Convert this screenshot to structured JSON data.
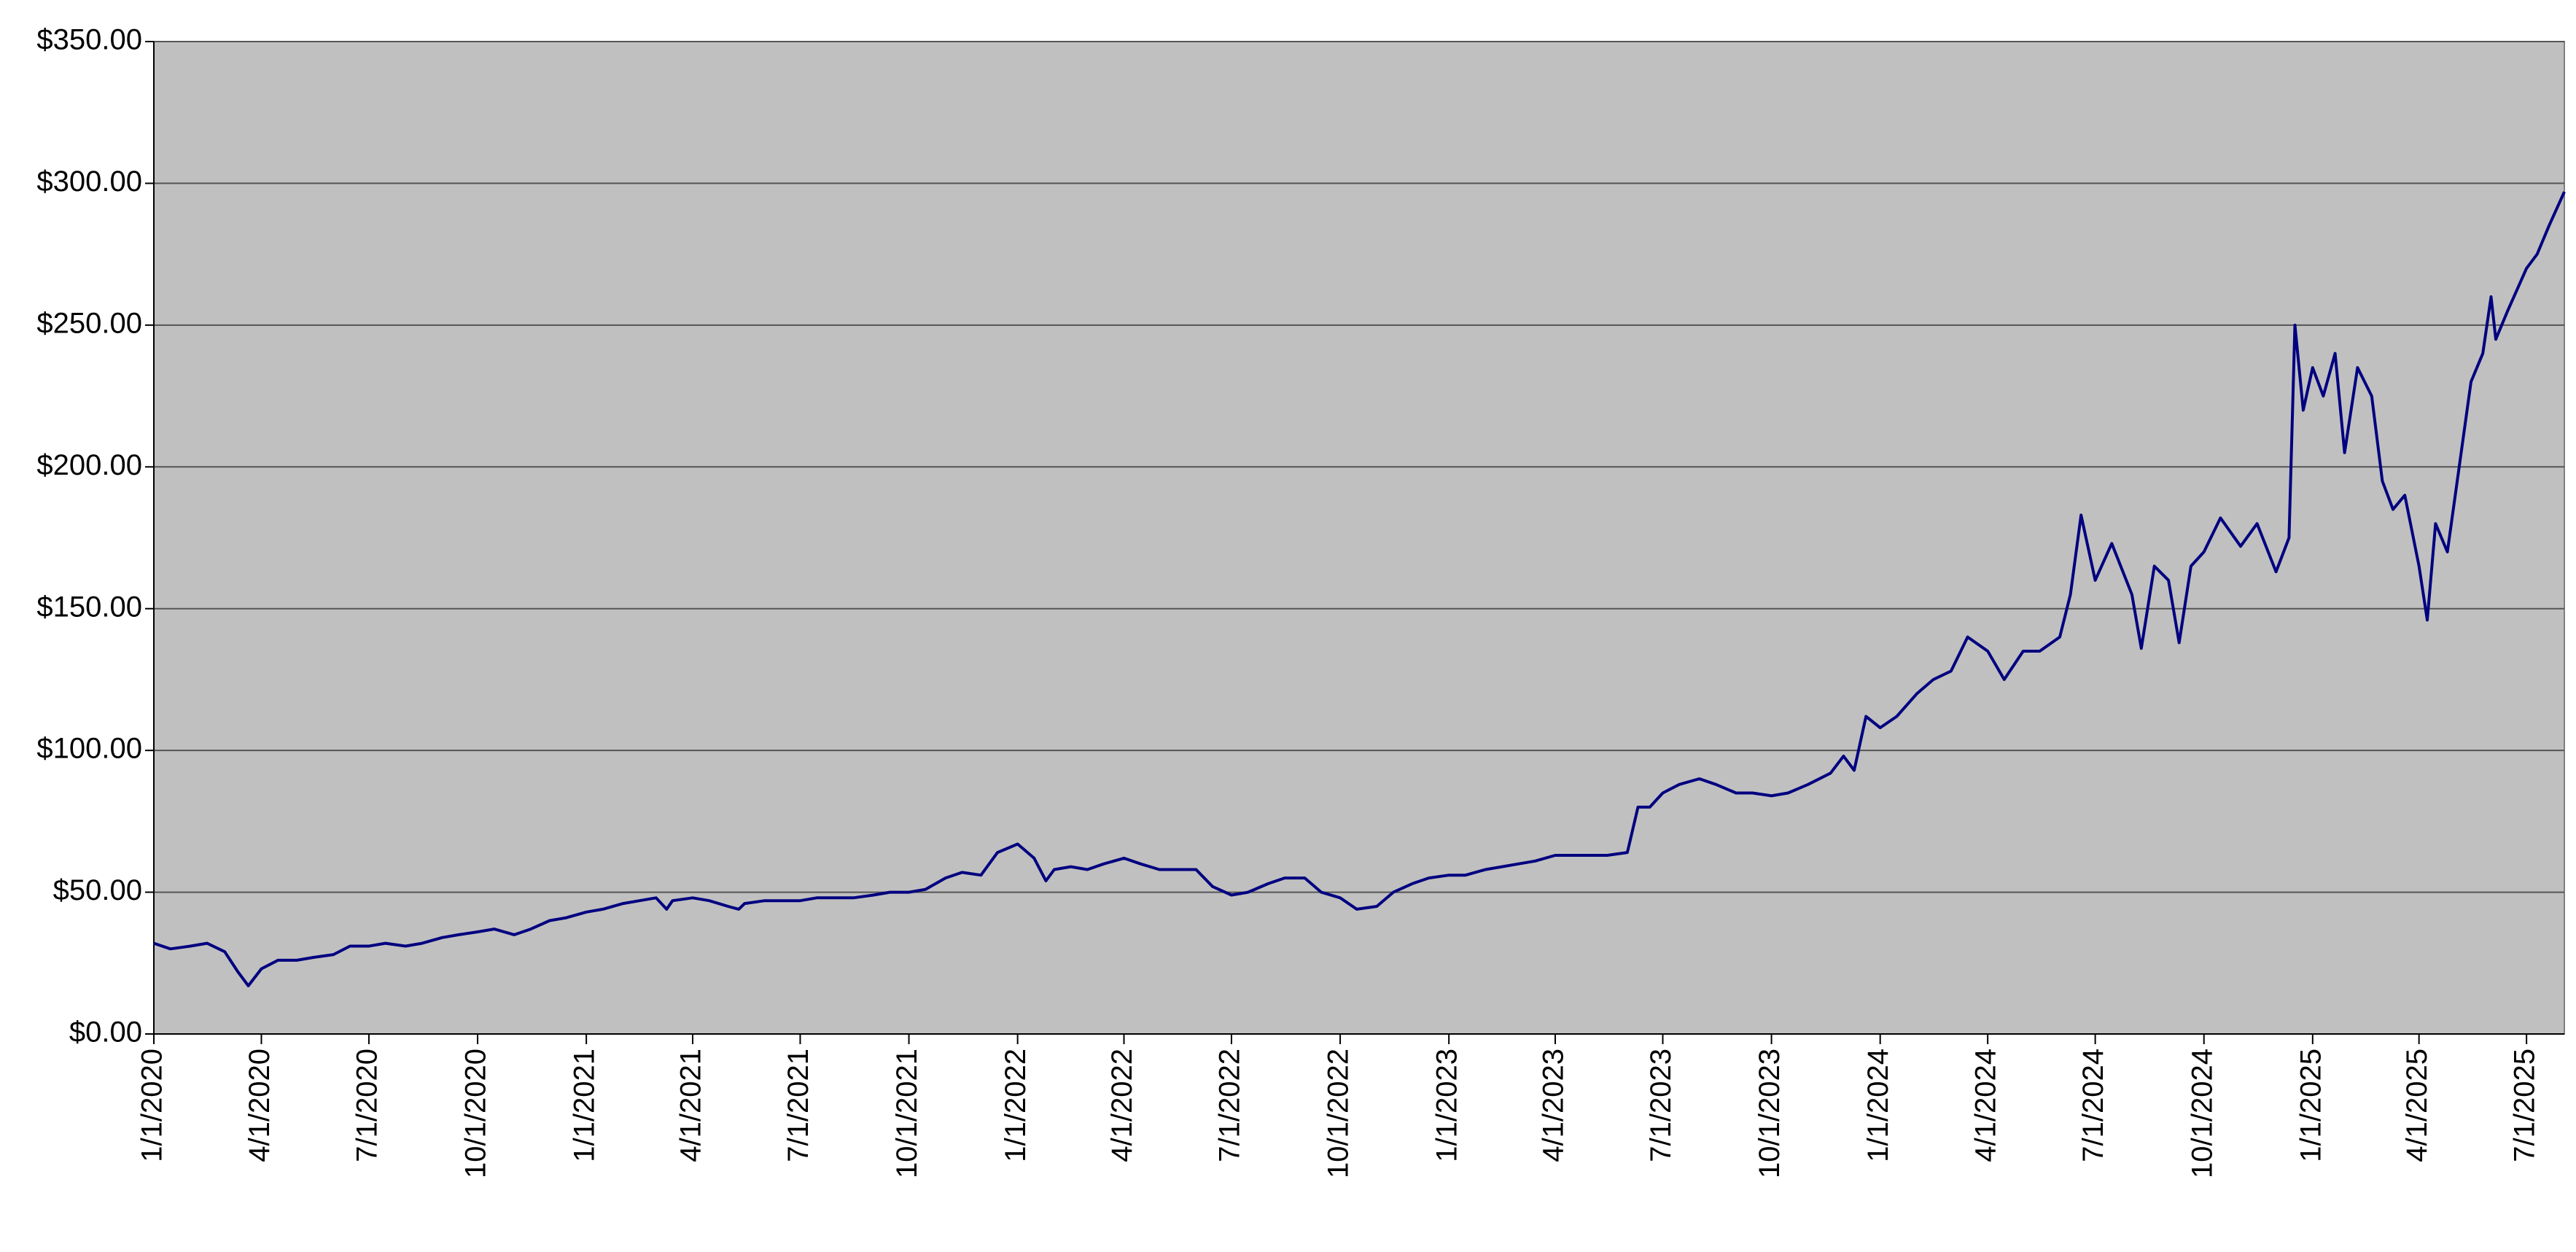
{
  "chart_data": {
    "type": "line",
    "color": "#000080",
    "grid": true,
    "xlim": [
      "1/1/2020",
      "8/2/2025"
    ],
    "ylim": [
      0,
      350
    ],
    "yticks": [
      {
        "value": 0,
        "label": "$0.00"
      },
      {
        "value": 50,
        "label": "$50.00"
      },
      {
        "value": 100,
        "label": "$100.00"
      },
      {
        "value": 150,
        "label": "$150.00"
      },
      {
        "value": 200,
        "label": "$200.00"
      },
      {
        "value": 250,
        "label": "$250.00"
      },
      {
        "value": 300,
        "label": "$300.00"
      },
      {
        "value": 350,
        "label": "$350.00"
      }
    ],
    "xticks": [
      "1/1/2020",
      "4/1/2020",
      "7/1/2020",
      "10/1/2020",
      "1/1/2021",
      "4/1/2021",
      "7/1/2021",
      "10/1/2021",
      "1/1/2022",
      "4/1/2022",
      "7/1/2022",
      "10/1/2022",
      "1/1/2023",
      "4/1/2023",
      "7/1/2023",
      "10/1/2023",
      "1/1/2024",
      "4/1/2024",
      "7/1/2024",
      "10/1/2024",
      "1/1/2025",
      "4/1/2025",
      "7/1/2025"
    ],
    "x": [
      "1/1/2020",
      "1/15/2020",
      "2/1/2020",
      "2/15/2020",
      "3/1/2020",
      "3/12/2020",
      "3/21/2020",
      "4/1/2020",
      "4/15/2020",
      "5/1/2020",
      "5/15/2020",
      "6/1/2020",
      "6/15/2020",
      "7/1/2020",
      "7/15/2020",
      "8/1/2020",
      "8/15/2020",
      "9/1/2020",
      "9/15/2020",
      "10/1/2020",
      "10/15/2020",
      "11/1/2020",
      "11/15/2020",
      "12/1/2020",
      "12/15/2020",
      "1/1/2021",
      "1/15/2021",
      "2/1/2021",
      "2/15/2021",
      "3/1/2021",
      "3/10/2021",
      "3/15/2021",
      "4/1/2021",
      "4/15/2021",
      "5/1/2021",
      "5/10/2021",
      "5/15/2021",
      "6/1/2021",
      "6/15/2021",
      "7/1/2021",
      "7/15/2021",
      "8/1/2021",
      "8/15/2021",
      "9/1/2021",
      "9/15/2021",
      "10/1/2021",
      "10/15/2021",
      "11/1/2021",
      "11/15/2021",
      "12/1/2021",
      "12/15/2021",
      "1/1/2022",
      "1/15/2022",
      "1/25/2022",
      "2/1/2022",
      "2/15/2022",
      "3/1/2022",
      "3/15/2022",
      "4/1/2022",
      "4/15/2022",
      "5/1/2022",
      "5/15/2022",
      "6/1/2022",
      "6/15/2022",
      "7/1/2022",
      "7/15/2022",
      "8/1/2022",
      "8/15/2022",
      "9/1/2022",
      "9/15/2022",
      "10/1/2022",
      "10/15/2022",
      "11/1/2022",
      "11/15/2022",
      "12/1/2022",
      "12/15/2022",
      "1/1/2023",
      "1/15/2023",
      "2/1/2023",
      "2/15/2023",
      "3/1/2023",
      "3/15/2023",
      "4/1/2023",
      "4/15/2023",
      "5/1/2023",
      "5/15/2023",
      "6/1/2023",
      "6/10/2023",
      "6/20/2023",
      "7/1/2023",
      "7/15/2023",
      "8/1/2023",
      "8/15/2023",
      "9/1/2023",
      "9/15/2023",
      "10/1/2023",
      "10/15/2023",
      "11/1/2023",
      "11/20/2023",
      "12/1/2023",
      "12/10/2023",
      "12/20/2023",
      "1/1/2024",
      "1/15/2024",
      "2/1/2024",
      "2/15/2024",
      "3/1/2024",
      "3/15/2024",
      "4/1/2024",
      "4/15/2024",
      "5/1/2024",
      "5/15/2024",
      "6/1/2024",
      "6/10/2024",
      "6/19/2024",
      "7/1/2024",
      "7/15/2024",
      "8/1/2024",
      "8/9/2024",
      "8/20/2024",
      "9/1/2024",
      "9/10/2024",
      "9/20/2024",
      "10/1/2024",
      "10/15/2024",
      "11/1/2024",
      "11/15/2024",
      "12/1/2024",
      "12/12/2024",
      "12/17/2024",
      "12/24/2024",
      "1/1/2025",
      "1/10/2025",
      "1/20/2025",
      "1/28/2025",
      "2/8/2025",
      "2/20/2025",
      "3/1/2025",
      "3/10/2025",
      "3/20/2025",
      "4/1/2025",
      "4/8/2025",
      "4/15/2025",
      "4/25/2025",
      "5/5/2025",
      "5/15/2025",
      "5/25/2025",
      "6/1/2025",
      "6/5/2025",
      "6/15/2025",
      "7/1/2025",
      "7/10/2025",
      "7/20/2025",
      "8/2/2025"
    ],
    "values": [
      32,
      30,
      31,
      32,
      29,
      22,
      17,
      23,
      26,
      26,
      27,
      28,
      31,
      31,
      32,
      31,
      32,
      34,
      35,
      36,
      37,
      35,
      37,
      40,
      41,
      43,
      44,
      46,
      47,
      48,
      44,
      47,
      48,
      47,
      45,
      44,
      46,
      47,
      47,
      47,
      48,
      48,
      48,
      49,
      50,
      50,
      51,
      55,
      57,
      56,
      64,
      67,
      62,
      54,
      58,
      59,
      58,
      60,
      62,
      60,
      58,
      58,
      58,
      52,
      49,
      50,
      53,
      55,
      55,
      50,
      48,
      44,
      45,
      50,
      53,
      55,
      56,
      56,
      58,
      59,
      60,
      61,
      63,
      63,
      63,
      63,
      64,
      80,
      80,
      85,
      88,
      90,
      88,
      85,
      85,
      84,
      85,
      88,
      92,
      98,
      93,
      112,
      108,
      112,
      120,
      125,
      128,
      140,
      135,
      125,
      135,
      135,
      140,
      155,
      183,
      160,
      173,
      155,
      136,
      165,
      160,
      138,
      165,
      170,
      182,
      172,
      180,
      163,
      175,
      250,
      220,
      235,
      225,
      240,
      205,
      235,
      225,
      195,
      185,
      190,
      165,
      146,
      180,
      170,
      200,
      230,
      240,
      260,
      245,
      255,
      270,
      275,
      285,
      297
    ]
  }
}
